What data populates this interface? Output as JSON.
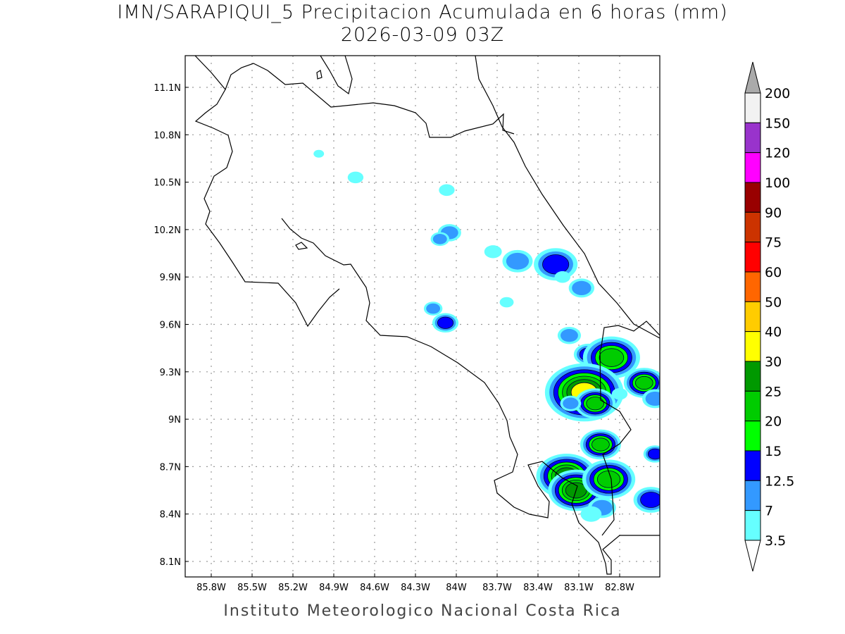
{
  "title": "IMN/SARAPIQUI_5 Precipitacion Acumulada en 6 horas (mm)",
  "subtitle": "2026-03-09 03Z",
  "credit": "Instituto Meteorologico Nacional Costa Rica",
  "map": {
    "lon_range": [
      -86.0,
      -82.5
    ],
    "lat_range": [
      8.0,
      11.3
    ],
    "lon_ticks": [
      {
        "v": -85.8,
        "label": "85.8W"
      },
      {
        "v": -85.5,
        "label": "85.5W"
      },
      {
        "v": -85.2,
        "label": "85.2W"
      },
      {
        "v": -84.9,
        "label": "84.9W"
      },
      {
        "v": -84.6,
        "label": "84.6W"
      },
      {
        "v": -84.3,
        "label": "84.3W"
      },
      {
        "v": -84.0,
        "label": "84W"
      },
      {
        "v": -83.7,
        "label": "83.7W"
      },
      {
        "v": -83.4,
        "label": "83.4W"
      },
      {
        "v": -83.1,
        "label": "83.1W"
      },
      {
        "v": -82.8,
        "label": "82.8W"
      }
    ],
    "lat_ticks": [
      {
        "v": 11.1,
        "label": "11.1N"
      },
      {
        "v": 10.8,
        "label": "10.8N"
      },
      {
        "v": 10.5,
        "label": "10.5N"
      },
      {
        "v": 10.2,
        "label": "10.2N"
      },
      {
        "v": 9.9,
        "label": "9.9N"
      },
      {
        "v": 9.6,
        "label": "9.6N"
      },
      {
        "v": 9.3,
        "label": "9.3N"
      },
      {
        "v": 9.0,
        "label": "9N"
      },
      {
        "v": 8.7,
        "label": "8.7N"
      },
      {
        "v": 8.4,
        "label": "8.4N"
      },
      {
        "v": 8.1,
        "label": "8.1N"
      }
    ],
    "grid": true
  },
  "colorbar": {
    "labels": [
      "200",
      "150",
      "120",
      "100",
      "90",
      "75",
      "60",
      "50",
      "40",
      "30",
      "25",
      "20",
      "15",
      "12.5",
      "7",
      "3.5"
    ],
    "colors": [
      "#f2f2f2",
      "#9933cc",
      "#ff00ff",
      "#990000",
      "#cc3300",
      "#ff0000",
      "#ff6600",
      "#ffcc00",
      "#ffff00",
      "#009900",
      "#00cc00",
      "#00ff00",
      "#0000ff",
      "#3399ff",
      "#66ffff"
    ],
    "over_color": "#aaaaaa",
    "under_color": "#ffffff"
  },
  "rain_cells": [
    {
      "lon": -85.01,
      "lat": 10.68,
      "max_level": 0,
      "size": 0.6
    },
    {
      "lon": -84.74,
      "lat": 10.53,
      "max_level": 0,
      "size": 0.9
    },
    {
      "lon": -84.07,
      "lat": 10.45,
      "max_level": 0,
      "size": 0.9
    },
    {
      "lon": -84.05,
      "lat": 10.18,
      "max_level": 1,
      "size": 1.0
    },
    {
      "lon": -84.12,
      "lat": 10.14,
      "max_level": 1,
      "size": 0.8
    },
    {
      "lon": -83.73,
      "lat": 10.06,
      "max_level": 0,
      "size": 1.0
    },
    {
      "lon": -83.55,
      "lat": 10.0,
      "max_level": 1,
      "size": 1.3
    },
    {
      "lon": -83.27,
      "lat": 9.98,
      "max_level": 2,
      "size": 1.5
    },
    {
      "lon": -83.22,
      "lat": 9.9,
      "max_level": 0,
      "size": 0.9
    },
    {
      "lon": -83.08,
      "lat": 9.83,
      "max_level": 1,
      "size": 1.1
    },
    {
      "lon": -84.17,
      "lat": 9.7,
      "max_level": 1,
      "size": 0.8
    },
    {
      "lon": -84.08,
      "lat": 9.61,
      "max_level": 2,
      "size": 0.9
    },
    {
      "lon": -83.63,
      "lat": 9.74,
      "max_level": 0,
      "size": 0.8
    },
    {
      "lon": -83.17,
      "lat": 9.53,
      "max_level": 1,
      "size": 1.0
    },
    {
      "lon": -83.03,
      "lat": 9.41,
      "max_level": 2,
      "size": 1.0
    },
    {
      "lon": -82.86,
      "lat": 9.39,
      "max_level": 4,
      "size": 1.4
    },
    {
      "lon": -82.67,
      "lat": 9.25,
      "max_level": 2,
      "size": 0.9
    },
    {
      "lon": -82.62,
      "lat": 9.23,
      "max_level": 4,
      "size": 1.0
    },
    {
      "lon": -83.06,
      "lat": 9.17,
      "max_level": 6,
      "size": 1.5
    },
    {
      "lon": -82.98,
      "lat": 9.1,
      "max_level": 4,
      "size": 1.0
    },
    {
      "lon": -83.16,
      "lat": 9.1,
      "max_level": 1,
      "size": 0.9
    },
    {
      "lon": -82.54,
      "lat": 9.13,
      "max_level": 1,
      "size": 1.1
    },
    {
      "lon": -82.8,
      "lat": 9.16,
      "max_level": 0,
      "size": 0.9
    },
    {
      "lon": -82.94,
      "lat": 8.84,
      "max_level": 4,
      "size": 1.0
    },
    {
      "lon": -82.54,
      "lat": 8.78,
      "max_level": 2,
      "size": 0.8
    },
    {
      "lon": -83.19,
      "lat": 8.64,
      "max_level": 5,
      "size": 1.3
    },
    {
      "lon": -83.12,
      "lat": 8.55,
      "max_level": 5,
      "size": 1.2
    },
    {
      "lon": -82.88,
      "lat": 8.62,
      "max_level": 4,
      "size": 1.3
    },
    {
      "lon": -82.57,
      "lat": 8.49,
      "max_level": 2,
      "size": 1.2
    },
    {
      "lon": -82.93,
      "lat": 8.44,
      "max_level": 1,
      "size": 1.2
    },
    {
      "lon": -83.01,
      "lat": 8.4,
      "max_level": 0,
      "size": 1.2
    }
  ]
}
